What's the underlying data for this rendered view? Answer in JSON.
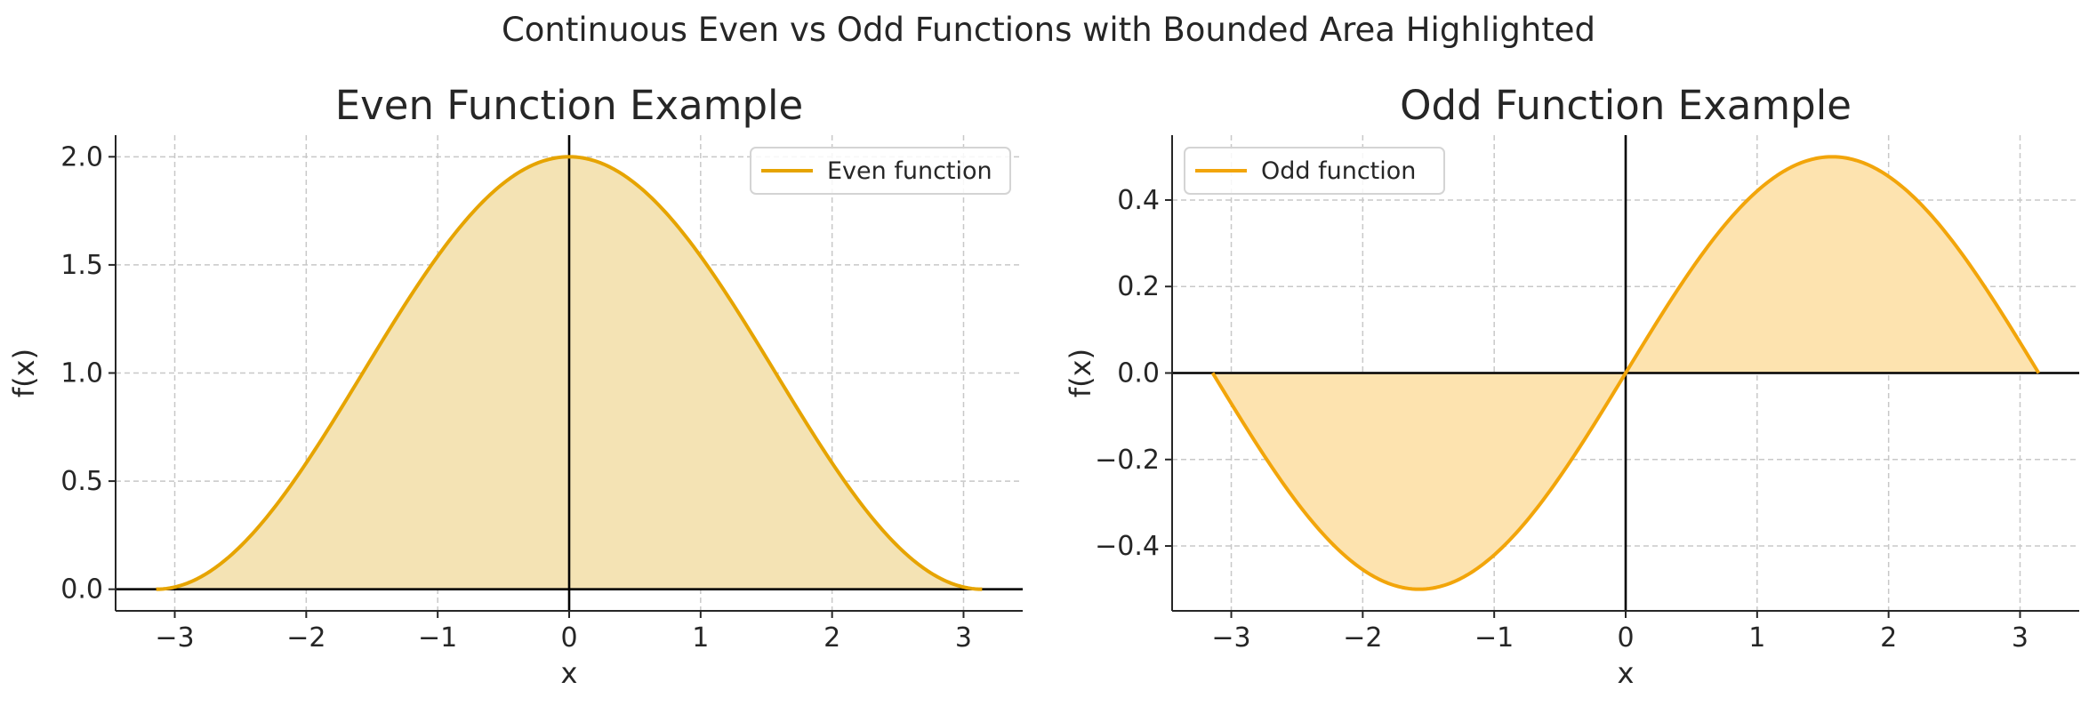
{
  "figure": {
    "suptitle": "Continuous Even vs Odd Functions with Bounded Area Highlighted"
  },
  "chart_data": [
    {
      "type": "area",
      "title": "Even Function Example",
      "xlabel": "x",
      "ylabel": "f(x)",
      "xlim": [
        -3.45,
        3.45
      ],
      "ylim": [
        -0.1,
        2.1
      ],
      "xticks": [
        -3,
        -2,
        -1,
        0,
        1,
        2,
        3
      ],
      "xtick_labels": [
        "−3",
        "−2",
        "−1",
        "0",
        "1",
        "2",
        "3"
      ],
      "yticks": [
        0.0,
        0.5,
        1.0,
        1.5,
        2.0
      ],
      "ytick_labels": [
        "0.0",
        "0.5",
        "1.0",
        "1.5",
        "2.0"
      ],
      "grid": true,
      "legend": {
        "label": "Even function",
        "position": "upper right"
      },
      "series": [
        {
          "name": "Even function",
          "formula": "cos(x) + 1",
          "domain": [
            -3.14159,
            3.14159
          ],
          "x": [
            -3.14,
            -3.0,
            -2.5,
            -2.0,
            -1.5,
            -1.0,
            -0.5,
            0.0,
            0.5,
            1.0,
            1.5,
            2.0,
            2.5,
            3.0,
            3.14
          ],
          "y": [
            0.0,
            0.01,
            0.2,
            0.58,
            1.07,
            1.54,
            1.88,
            2.0,
            1.88,
            1.54,
            1.07,
            0.58,
            0.2,
            0.01,
            0.0
          ]
        }
      ],
      "colors": {
        "line": "#E6A400",
        "fill": "#F4E3B4"
      },
      "fill_between": "curve and y=0"
    },
    {
      "type": "area",
      "title": "Odd Function Example",
      "xlabel": "x",
      "ylabel": "f(x)",
      "xlim": [
        -3.45,
        3.45
      ],
      "ylim": [
        -0.55,
        0.55
      ],
      "xticks": [
        -3,
        -2,
        -1,
        0,
        1,
        2,
        3
      ],
      "xtick_labels": [
        "−3",
        "−2",
        "−1",
        "0",
        "1",
        "2",
        "3"
      ],
      "yticks": [
        -0.4,
        -0.2,
        0.0,
        0.2,
        0.4
      ],
      "ytick_labels": [
        "−0.4",
        "−0.2",
        "0.0",
        "0.2",
        "0.4"
      ],
      "grid": true,
      "legend": {
        "label": "Odd function",
        "position": "upper left"
      },
      "series": [
        {
          "name": "Odd function",
          "formula": "0.5 * sin(x)",
          "domain": [
            -3.14159,
            3.14159
          ],
          "x": [
            -3.14,
            -3.0,
            -2.5,
            -2.0,
            -1.57,
            -1.0,
            -0.5,
            0.0,
            0.5,
            1.0,
            1.57,
            2.0,
            2.5,
            3.0,
            3.14
          ],
          "y": [
            0.0,
            -0.07,
            -0.3,
            -0.45,
            -0.5,
            -0.42,
            -0.24,
            0.0,
            0.24,
            0.42,
            0.5,
            0.45,
            0.3,
            0.07,
            0.0
          ]
        }
      ],
      "colors": {
        "line": "#F2A50A",
        "fill": "#FDE3AF"
      },
      "fill_between": "curve and y=0"
    }
  ]
}
